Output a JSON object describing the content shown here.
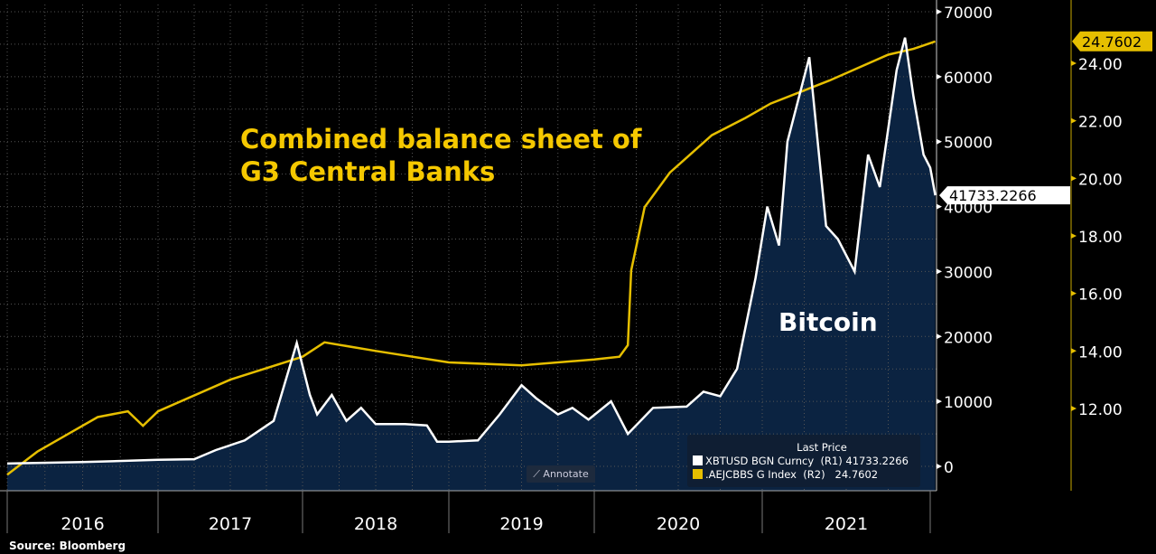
{
  "chart_data": {
    "type": "line",
    "title": "",
    "annotations": {
      "central_banks": [
        "Combined balance sheet of",
        "G3 Central Banks"
      ],
      "bitcoin": "Bitcoin"
    },
    "source": "Source:  Bloomberg",
    "x_tick_labels": [
      "2016",
      "2017",
      "2018",
      "2019",
      "2020",
      "2021"
    ],
    "left_axis": {
      "range": [
        0,
        70000
      ],
      "ticks": [
        "0",
        "10000",
        "20000",
        "30000",
        "40000",
        "50000",
        "60000",
        "70000"
      ]
    },
    "right_axis": {
      "range": [
        10,
        25
      ],
      "ticks": [
        "12.00",
        "14.00",
        "16.00",
        "18.00",
        "20.00",
        "22.00",
        "24.00"
      ]
    },
    "legend": {
      "title": "Last Price",
      "placement": "bottom-right"
    },
    "annotate_button": "Annotate",
    "series": [
      {
        "name": "XBTUSD BGN Curncy  (R1)",
        "last": "41733.2266",
        "color": "#ffffff",
        "axis": "left",
        "fill": "#0b2341",
        "x": [
          2016.0,
          2016.5,
          2017.0,
          2017.25,
          2017.4,
          2017.6,
          2017.8,
          2017.96,
          2018.05,
          2018.1,
          2018.2,
          2018.3,
          2018.4,
          2018.5,
          2018.7,
          2018.85,
          2018.92,
          2019.0,
          2019.2,
          2019.35,
          2019.5,
          2019.6,
          2019.75,
          2019.85,
          2019.96,
          2020.1,
          2020.2,
          2020.35,
          2020.55,
          2020.65,
          2020.75,
          2020.85,
          2020.96,
          2021.03,
          2021.1,
          2021.15,
          2021.28,
          2021.38,
          2021.45,
          2021.55,
          2021.63,
          2021.7,
          2021.8,
          2021.85,
          2021.9,
          2021.96,
          2022.0,
          2022.03
        ],
        "y": [
          430,
          650,
          1000,
          1100,
          2500,
          4000,
          7000,
          19000,
          11000,
          8000,
          11000,
          7000,
          9000,
          6500,
          6500,
          6300,
          3800,
          3800,
          4000,
          8000,
          12500,
          10500,
          8000,
          9000,
          7200,
          10000,
          5000,
          9000,
          9200,
          11500,
          10800,
          15000,
          29000,
          40000,
          34000,
          50000,
          63000,
          37000,
          35000,
          30000,
          48000,
          43000,
          61000,
          66000,
          57000,
          48000,
          46000,
          41733
        ]
      },
      {
        "name": ".AEJCBBS G Index  (R2)",
        "last": "24.7602",
        "color": "#e6bf00",
        "axis": "right",
        "x": [
          2016.0,
          2016.2,
          2016.4,
          2016.6,
          2016.8,
          2016.9,
          2017.0,
          2017.5,
          2018.0,
          2018.15,
          2018.5,
          2019.0,
          2019.5,
          2020.0,
          2020.15,
          2020.2,
          2020.22,
          2020.3,
          2020.45,
          2020.7,
          2020.9,
          2021.05,
          2021.4,
          2021.75,
          2021.9,
          2022.03
        ],
        "y": [
          9.7,
          10.5,
          11.1,
          11.7,
          11.9,
          11.4,
          11.9,
          13.0,
          13.8,
          14.3,
          14.0,
          13.6,
          13.5,
          13.7,
          13.8,
          14.2,
          16.8,
          19.0,
          20.2,
          21.5,
          22.1,
          22.6,
          23.4,
          24.3,
          24.5,
          24.76
        ]
      }
    ]
  }
}
